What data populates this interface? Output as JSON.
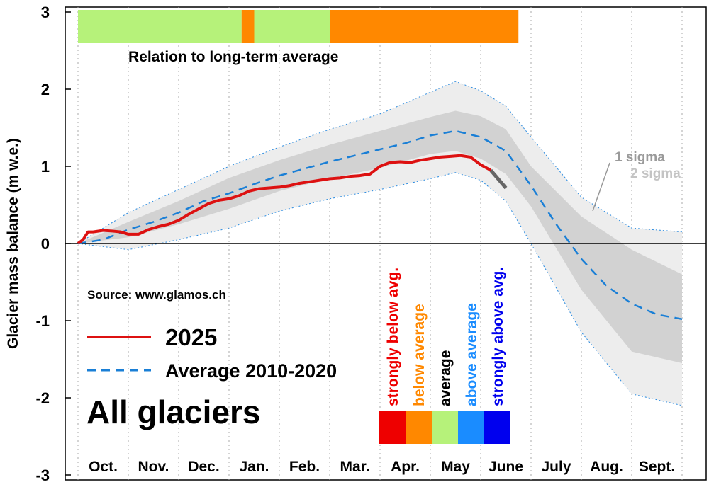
{
  "chart_data": {
    "type": "line",
    "title": "All glaciers",
    "source": "Source: www.glamos.ch",
    "ylabel": "Glacier mass balance (m w.e.)",
    "xlabel": "",
    "ylim": [
      -3,
      3
    ],
    "yticks": [
      "3",
      "2",
      "1",
      "0",
      "-1",
      "-2",
      "-3"
    ],
    "months": [
      "Oct.",
      "Nov.",
      "Dec.",
      "Jan.",
      "Feb.",
      "Mar.",
      "Apr.",
      "May",
      "June",
      "July",
      "Aug.",
      "Sept."
    ],
    "x_unit": "months since 1 Oct",
    "series": [
      {
        "name": "2025",
        "color": "#dd1111",
        "x": [
          0,
          0.1,
          0.2,
          0.3,
          0.5,
          0.7,
          0.85,
          1.0,
          1.2,
          1.4,
          1.6,
          1.8,
          2.0,
          2.2,
          2.4,
          2.6,
          2.8,
          3.0,
          3.2,
          3.4,
          3.6,
          3.8,
          4.0,
          4.2,
          4.4,
          4.6,
          4.8,
          5.0,
          5.2,
          5.4,
          5.6,
          5.8,
          6.0,
          6.2,
          6.4,
          6.6,
          6.8,
          7.0,
          7.2,
          7.4,
          7.6,
          7.8,
          8.0,
          8.2
        ],
        "values": [
          0.0,
          0.05,
          0.15,
          0.15,
          0.17,
          0.16,
          0.15,
          0.12,
          0.12,
          0.18,
          0.22,
          0.25,
          0.3,
          0.38,
          0.45,
          0.52,
          0.56,
          0.58,
          0.62,
          0.68,
          0.71,
          0.72,
          0.73,
          0.75,
          0.78,
          0.8,
          0.82,
          0.84,
          0.85,
          0.87,
          0.88,
          0.9,
          1.0,
          1.05,
          1.06,
          1.05,
          1.08,
          1.1,
          1.12,
          1.13,
          1.14,
          1.12,
          1.02,
          0.95
        ]
      },
      {
        "name": "Average 2010-2020",
        "color": "#1a7fd6",
        "x": [
          0,
          0.5,
          1.0,
          1.5,
          2.0,
          2.5,
          3.0,
          3.5,
          4.0,
          4.5,
          5.0,
          5.5,
          6.0,
          6.5,
          7.0,
          7.5,
          8.0,
          8.5,
          9.0,
          9.5,
          10.0,
          10.5,
          11.0,
          11.5,
          12.0
        ],
        "values": [
          0.0,
          0.05,
          0.18,
          0.28,
          0.4,
          0.55,
          0.65,
          0.77,
          0.88,
          0.97,
          1.06,
          1.14,
          1.22,
          1.3,
          1.4,
          1.46,
          1.38,
          1.2,
          0.75,
          0.25,
          -0.2,
          -0.55,
          -0.78,
          -0.92,
          -0.98
        ]
      }
    ],
    "forecast": {
      "x": [
        8.2,
        8.5
      ],
      "values": [
        0.95,
        0.72
      ],
      "color": "#666666"
    },
    "sigma_bands": {
      "x": [
        0,
        1,
        2,
        3,
        4,
        5,
        6,
        7,
        7.5,
        8,
        8.5,
        9,
        10,
        11,
        12
      ],
      "sigma1_upper": [
        0.0,
        0.28,
        0.55,
        0.85,
        1.08,
        1.28,
        1.46,
        1.64,
        1.72,
        1.65,
        1.48,
        1.0,
        0.35,
        -0.08,
        -0.4
      ],
      "sigma1_lower": [
        0.0,
        0.08,
        0.25,
        0.45,
        0.68,
        0.84,
        0.98,
        1.16,
        1.2,
        1.1,
        0.9,
        0.48,
        -0.6,
        -1.4,
        -1.55
      ],
      "sigma2_upper": [
        0.0,
        0.4,
        0.7,
        1.0,
        1.25,
        1.48,
        1.68,
        1.96,
        2.1,
        1.98,
        1.78,
        1.38,
        0.6,
        0.2,
        0.15
      ],
      "sigma2_lower": [
        0.0,
        -0.08,
        0.05,
        0.2,
        0.42,
        0.58,
        0.7,
        0.84,
        0.92,
        0.82,
        0.55,
        0.0,
        -1.15,
        -1.95,
        -2.1
      ],
      "sigma1_label": "1 sigma",
      "sigma2_label": "2 sigma"
    },
    "relation_bar": {
      "label": "Relation to long-term average",
      "segments": [
        {
          "from": 0.0,
          "to": 3.25,
          "category": "average"
        },
        {
          "from": 3.25,
          "to": 3.5,
          "category": "below average"
        },
        {
          "from": 3.5,
          "to": 5.0,
          "category": "average"
        },
        {
          "from": 5.0,
          "to": 8.75,
          "category": "below average"
        }
      ]
    },
    "legend": {
      "entries": [
        "2025",
        "Average 2010-2020"
      ],
      "categories": [
        {
          "label": "strongly below avg.",
          "color": "#ee0000"
        },
        {
          "label": "below average",
          "color": "#ff8800"
        },
        {
          "label": "average",
          "color": "#b6f27a",
          "text_color": "#000000"
        },
        {
          "label": "above average",
          "color": "#1a8cff"
        },
        {
          "label": "strongly above avg.",
          "color": "#0000ee"
        }
      ]
    }
  }
}
